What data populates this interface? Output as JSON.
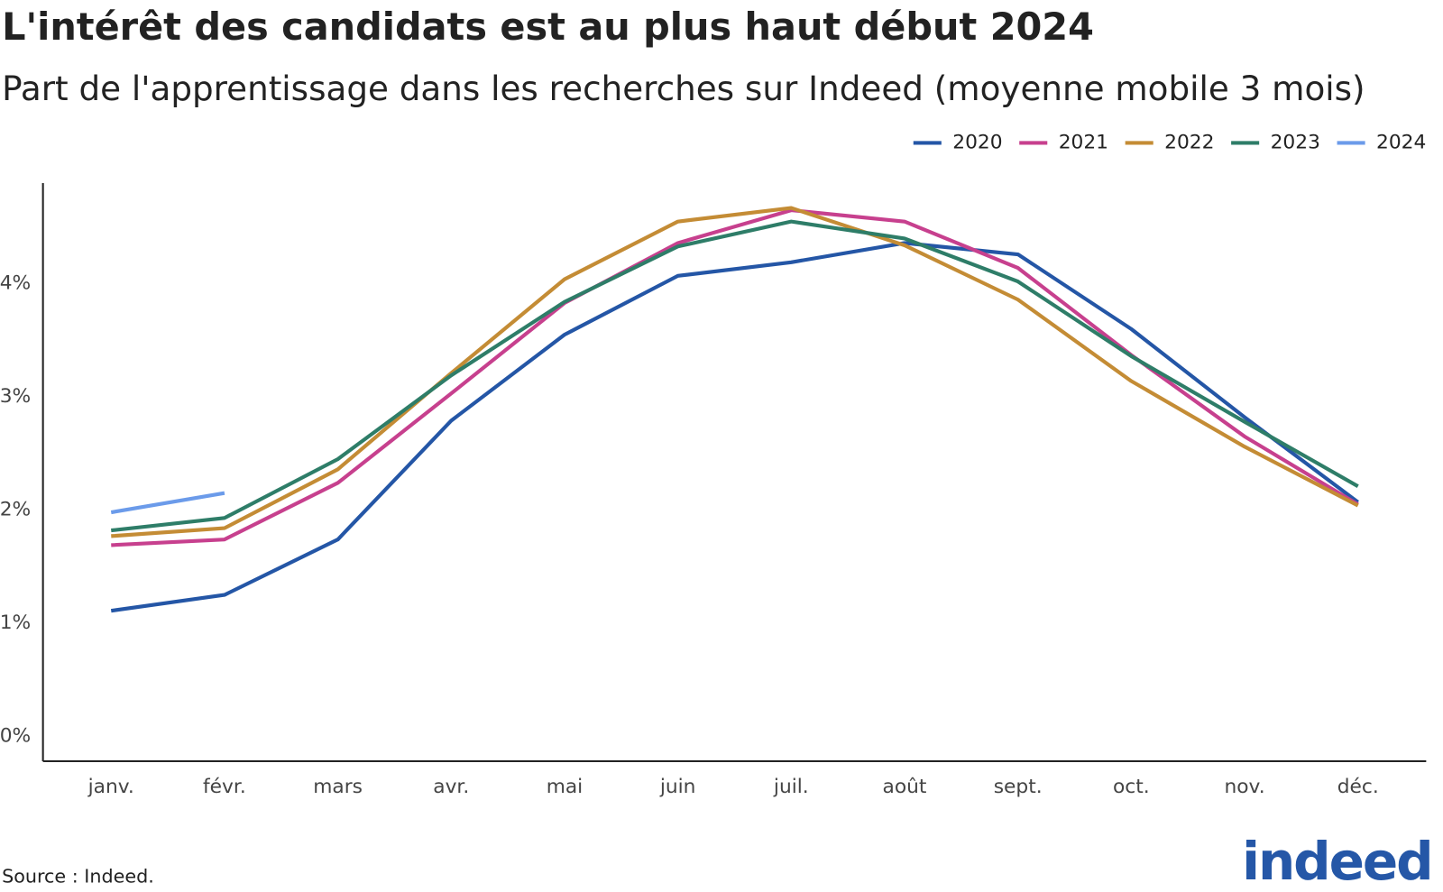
{
  "chart_data": {
    "type": "line",
    "title": "L'intérêt des candidats est au plus haut début 2024",
    "subtitle": "Part de l'apprentissage dans les recherches sur Indeed (moyenne mobile 3 mois)",
    "source": "Source : Indeed.",
    "logo": "indeed",
    "categories": [
      "janv.",
      "févr.",
      "mars",
      "avr.",
      "mai",
      "juin",
      "juil.",
      "août",
      "sept.",
      "oct.",
      "nov.",
      "déc."
    ],
    "series": [
      {
        "name": "2020",
        "color": "#2456a6",
        "values": [
          1.11,
          1.25,
          1.74,
          2.79,
          3.55,
          4.07,
          4.19,
          4.36,
          4.26,
          3.6,
          2.82,
          2.07
        ]
      },
      {
        "name": "2021",
        "color": "#c7408e",
        "values": [
          1.69,
          1.74,
          2.24,
          3.03,
          3.83,
          4.36,
          4.65,
          4.55,
          4.14,
          3.37,
          2.65,
          2.05
        ]
      },
      {
        "name": "2022",
        "color": "#c48c35",
        "values": [
          1.77,
          1.84,
          2.36,
          3.21,
          4.04,
          4.55,
          4.67,
          4.34,
          3.86,
          3.14,
          2.56,
          2.04
        ]
      },
      {
        "name": "2023",
        "color": "#2e7d68",
        "values": [
          1.82,
          1.93,
          2.45,
          3.19,
          3.84,
          4.33,
          4.55,
          4.4,
          4.02,
          3.36,
          2.78,
          2.21
        ]
      },
      {
        "name": "2024",
        "color": "#6b9bea",
        "values": [
          1.98,
          2.15,
          null,
          null,
          null,
          null,
          null,
          null,
          null,
          null,
          null,
          null
        ]
      }
    ],
    "ylim": [
      -0.22,
      4.89
    ],
    "yticks": [
      {
        "value": 0,
        "label": "0%"
      },
      {
        "value": 1,
        "label": "1%"
      },
      {
        "value": 2,
        "label": "2%"
      },
      {
        "value": 3,
        "label": "3%"
      },
      {
        "value": 4,
        "label": "4%"
      }
    ],
    "legend": "top-right"
  }
}
